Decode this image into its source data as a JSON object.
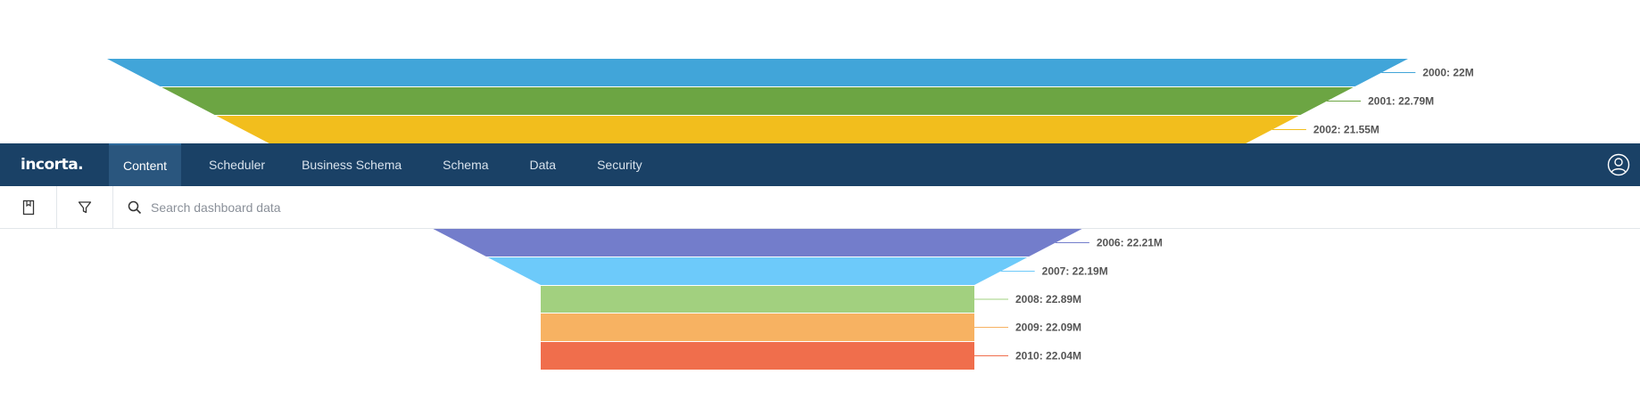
{
  "navbar": {
    "logo": "incorta.",
    "tabs": [
      {
        "label": "Content",
        "active": true
      },
      {
        "label": "Scheduler",
        "active": false
      },
      {
        "label": "Business Schema",
        "active": false
      },
      {
        "label": "Schema",
        "active": false
      },
      {
        "label": "Data",
        "active": false
      },
      {
        "label": "Security",
        "active": false
      }
    ],
    "user_icon": "user-icon",
    "background": "#1a4166"
  },
  "toolbar": {
    "bookmark_icon": "bookmark-icon",
    "filter_icon": "filter-icon",
    "search_icon": "search-icon",
    "search_placeholder": "Search dashboard data",
    "search_value": ""
  },
  "chart_data": {
    "type": "funnel",
    "title": "",
    "categories": [
      "2000",
      "2001",
      "2002",
      "2006",
      "2007",
      "2008",
      "2009",
      "2010"
    ],
    "values": [
      22,
      22.79,
      21.55,
      22.21,
      22.19,
      22.89,
      22.09,
      22.04
    ],
    "labels": [
      "2000: 22M",
      "2001: 22.79M",
      "2002: 21.55M",
      "2006: 22.21M",
      "2007: 22.19M",
      "2008: 22.89M",
      "2009: 22.09M",
      "2010: 22.04M"
    ],
    "colors": [
      "#41a5d9",
      "#6ca543",
      "#f2be1d",
      "#737dcb",
      "#6dcafa",
      "#a2d07f",
      "#f7b262",
      "#f06e4c"
    ]
  }
}
